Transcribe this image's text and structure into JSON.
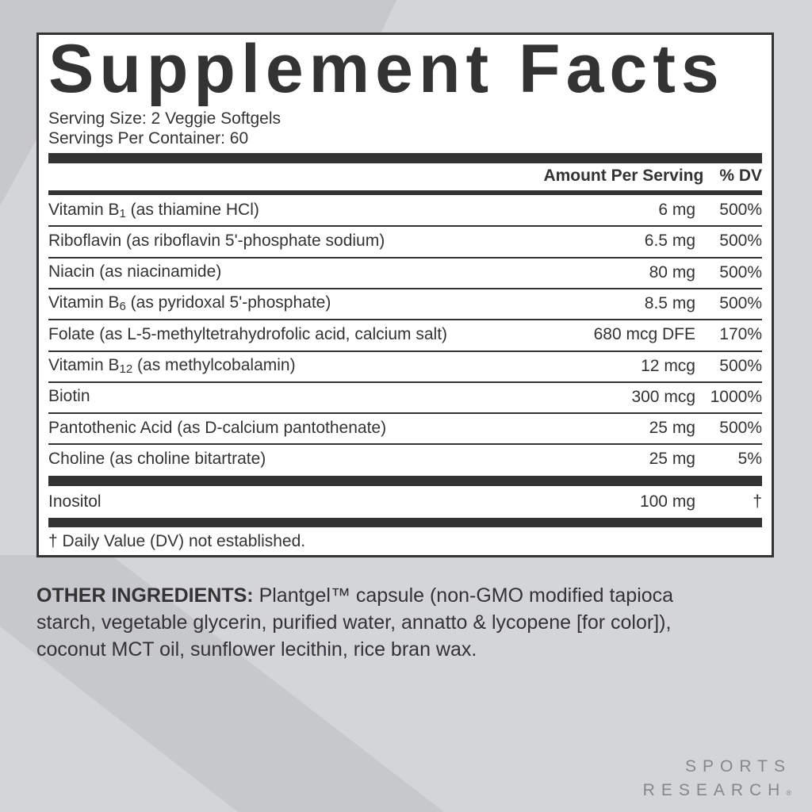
{
  "panel": {
    "title": "Supplement Facts",
    "serving_size": "Serving Size: 2 Veggie Softgels",
    "servings_per_container": "Servings Per Container: 60",
    "header": {
      "amount": "Amount Per Serving",
      "dv": "% DV"
    },
    "rows": [
      {
        "name": "Vitamin B",
        "sub": "1",
        "detail": " (as thiamine HCl)",
        "amount": "6 mg",
        "dv": "500%"
      },
      {
        "name": "Riboflavin (as riboflavin 5'-phosphate sodium)",
        "sub": "",
        "detail": "",
        "amount": "6.5 mg",
        "dv": "500%"
      },
      {
        "name": "Niacin (as niacinamide)",
        "sub": "",
        "detail": "",
        "amount": "80 mg",
        "dv": "500%"
      },
      {
        "name": "Vitamin B",
        "sub": "6",
        "detail": " (as pyridoxal 5'-phosphate)",
        "amount": "8.5 mg",
        "dv": "500%"
      },
      {
        "name": "Folate (as L-5-methyltetrahydrofolic acid, calcium salt)",
        "sub": "",
        "detail": "",
        "amount": "680 mcg DFE",
        "dv": "170%"
      },
      {
        "name": "Vitamin B",
        "sub": "12",
        "detail": " (as methylcobalamin)",
        "amount": "12 mcg",
        "dv": "500%"
      },
      {
        "name": "Biotin",
        "sub": "",
        "detail": "",
        "amount": "300 mcg",
        "dv": "1000%"
      },
      {
        "name": "Pantothenic Acid (as D-calcium pantothenate)",
        "sub": "",
        "detail": "",
        "amount": "25 mg",
        "dv": "500%"
      },
      {
        "name": "Choline (as choline bitartrate)",
        "sub": "",
        "detail": "",
        "amount": "25 mg",
        "dv": "5%"
      }
    ],
    "extra_row": {
      "name": "Inositol",
      "amount": "100 mg",
      "dv": "†"
    },
    "footnote": "† Daily Value (DV) not established."
  },
  "other_ingredients": {
    "label": "OTHER INGREDIENTS:",
    "text": " Plantgel™ capsule (non-GMO modified tapioca starch, vegetable glycerin, purified water, annatto & lycopene [for color]), coconut MCT oil, sunflower lecithin, rice bran wax."
  },
  "brand": {
    "line1": "SPORTS",
    "line2": "RESEARCH",
    "mark": "®"
  },
  "colors": {
    "background": "#d4d5d8",
    "ink": "#333333",
    "panel": "#ffffff",
    "logo": "#85878a"
  }
}
